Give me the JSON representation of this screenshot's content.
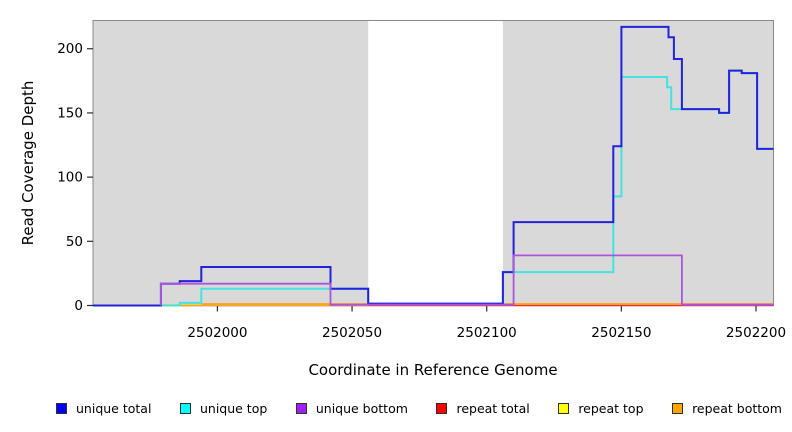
{
  "chart_data": {
    "type": "line",
    "style": "step",
    "title": "",
    "xlabel": "Coordinate in Reference Genome",
    "ylabel": "Read Coverage Depth",
    "x_domain": [
      2501953.8,
      2502206.5
    ],
    "y_domain": [
      0,
      222
    ],
    "xticks": [
      2502000,
      2502050,
      2502100,
      2502150,
      2502200
    ],
    "yticks": [
      0,
      50,
      100,
      150,
      200
    ],
    "grid": false,
    "plot_background": "#d9d9d9",
    "masked_region": {
      "from": 2502056,
      "to": 2502106,
      "color": "#ffffff"
    },
    "legend_position": "bottom",
    "legend": [
      {
        "label": "unique total",
        "color": "#0000ff"
      },
      {
        "label": "unique top",
        "color": "#00ffff"
      },
      {
        "label": "unique bottom",
        "color": "#a020f0"
      },
      {
        "label": "repeat total",
        "color": "#ff0000"
      },
      {
        "label": "repeat top",
        "color": "#ffff00"
      },
      {
        "label": "repeat bottom",
        "color": "#ffa500"
      }
    ],
    "series": [
      {
        "name": "repeat total",
        "line_color": "#e03030",
        "width": 1.6,
        "segments": [
          [
            [
              2501953.8,
              0
            ],
            [
              2502206.5,
              0
            ]
          ]
        ]
      },
      {
        "name": "repeat top",
        "line_color": "#e8d820",
        "width": 1.6,
        "segments": [
          [
            [
              2501979,
              0.5
            ],
            [
              2502056,
              0.5
            ]
          ]
        ]
      },
      {
        "name": "repeat bottom",
        "line_color": "#ff9f1a",
        "width": 1.8,
        "segments": [
          [
            [
              2501994,
              1.2
            ],
            [
              2502056,
              1.2
            ]
          ],
          [
            [
              2502106,
              1.2
            ],
            [
              2502206.5,
              1.2
            ]
          ]
        ]
      },
      {
        "name": "unique top",
        "line_color": "#44e2e2",
        "width": 2,
        "segments": [
          [
            [
              2501953.8,
              0
            ],
            [
              2501986,
              2
            ],
            [
              2501994,
              13
            ],
            [
              2502056,
              1.5
            ],
            [
              2502106,
              26
            ],
            [
              2502147,
              85
            ],
            [
              2502150,
              178
            ],
            [
              2502167,
              170
            ],
            [
              2502168.5,
              153
            ],
            [
              2502186.3,
              150
            ],
            [
              2502190,
              183
            ],
            [
              2502194.7,
              181
            ],
            [
              2502200.4,
              122
            ],
            [
              2502206.5,
              122
            ]
          ]
        ]
      },
      {
        "name": "unique total",
        "line_color": "#2222dd",
        "width": 2,
        "segments": [
          [
            [
              2501953.8,
              0
            ],
            [
              2501979,
              17
            ],
            [
              2501986,
              19
            ],
            [
              2501994,
              30
            ],
            [
              2502042,
              13
            ],
            [
              2502056,
              1.5
            ],
            [
              2502106,
              26
            ],
            [
              2502110,
              65
            ],
            [
              2502147,
              124
            ],
            [
              2502150,
              217
            ],
            [
              2502167.5,
              209
            ],
            [
              2502169.5,
              192
            ],
            [
              2502172.5,
              153
            ],
            [
              2502186.3,
              150
            ],
            [
              2502190,
              183
            ],
            [
              2502194.7,
              181
            ],
            [
              2502200.4,
              122
            ],
            [
              2502206.5,
              122
            ]
          ]
        ]
      },
      {
        "name": "unique bottom",
        "line_color": "#aa55dd",
        "width": 1.8,
        "segments": [
          [
            [
              2501979,
              0
            ],
            [
              2501979,
              17
            ],
            [
              2502042,
              0.6
            ],
            [
              2502110,
              39
            ],
            [
              2502172.5,
              0.6
            ],
            [
              2502206.5,
              0.6
            ]
          ]
        ]
      }
    ]
  }
}
